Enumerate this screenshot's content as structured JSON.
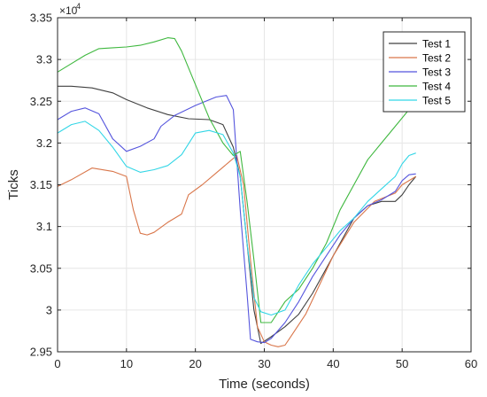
{
  "chart_data": {
    "type": "line",
    "title": "",
    "xlabel": "Time (seconds)",
    "ylabel": "Ticks",
    "y_scale_exponent_label": "×10",
    "y_scale_exponent_power": "4",
    "xlim": [
      0,
      60
    ],
    "ylim": [
      29500,
      33500
    ],
    "x_ticks": [
      0,
      10,
      20,
      30,
      40,
      50,
      60
    ],
    "x_tick_labels": [
      "0",
      "10",
      "20",
      "30",
      "40",
      "50",
      "60"
    ],
    "y_ticks": [
      29500,
      30000,
      30500,
      31000,
      31500,
      32000,
      32500,
      33000,
      33500
    ],
    "y_tick_labels": [
      "2.95",
      "3",
      "3.05",
      "3.1",
      "3.15",
      "3.2",
      "3.25",
      "3.3",
      "3.35"
    ],
    "grid": true,
    "legend_position": "top-right",
    "series": [
      {
        "name": "Test 1",
        "color": "#404040",
        "x": [
          0,
          2,
          5,
          8,
          10,
          13,
          16,
          19,
          22,
          24,
          25.5,
          26.5,
          27.5,
          28.5,
          29.5,
          31,
          33,
          35,
          37,
          39,
          41,
          43,
          45,
          47,
          49,
          50,
          51,
          52
        ],
        "y": [
          32680,
          32680,
          32660,
          32600,
          32520,
          32420,
          32340,
          32290,
          32280,
          32220,
          31950,
          31600,
          30800,
          30000,
          29600,
          29680,
          29800,
          29950,
          30200,
          30500,
          30800,
          31100,
          31250,
          31300,
          31300,
          31380,
          31500,
          31600
        ]
      },
      {
        "name": "Test 2",
        "color": "#d9764a",
        "x": [
          0,
          2,
          5,
          8,
          10,
          11,
          12,
          13,
          14,
          16,
          18,
          19,
          21,
          23,
          25,
          26,
          27,
          28,
          29,
          30,
          31,
          32,
          33,
          34,
          36,
          38,
          40,
          43,
          46,
          49,
          50,
          52
        ],
        "y": [
          31480,
          31560,
          31700,
          31660,
          31600,
          31200,
          30920,
          30900,
          30930,
          31050,
          31150,
          31380,
          31500,
          31640,
          31780,
          31850,
          31500,
          30600,
          29800,
          29620,
          29580,
          29560,
          29580,
          29700,
          29950,
          30300,
          30650,
          31050,
          31300,
          31400,
          31500,
          31600
        ]
      },
      {
        "name": "Test 3",
        "color": "#5555dd",
        "x": [
          0,
          2,
          4,
          6,
          8,
          10,
          12,
          14,
          15,
          17,
          20,
          23,
          24.5,
          25.5,
          26.5,
          27.5,
          28,
          29,
          30,
          31,
          33,
          35,
          37,
          39,
          41,
          43,
          45,
          47,
          49,
          50,
          51,
          52
        ],
        "y": [
          32280,
          32380,
          32420,
          32350,
          32050,
          31900,
          31960,
          32050,
          32200,
          32330,
          32450,
          32550,
          32570,
          32400,
          31200,
          30200,
          29650,
          29620,
          29610,
          29660,
          29850,
          30100,
          30400,
          30650,
          30900,
          31100,
          31250,
          31320,
          31420,
          31550,
          31620,
          31630
        ]
      },
      {
        "name": "Test 4",
        "color": "#3fb83f",
        "x": [
          0,
          2,
          4,
          6,
          8,
          10,
          12,
          14,
          16,
          17,
          18,
          19,
          20,
          22,
          24,
          25.5,
          26.5,
          27.5,
          28.5,
          29.5,
          31,
          33,
          35,
          37,
          39,
          41,
          43,
          45,
          47,
          49,
          51,
          52
        ],
        "y": [
          32850,
          32950,
          33050,
          33130,
          33140,
          33150,
          33170,
          33210,
          33260,
          33250,
          33100,
          32900,
          32700,
          32300,
          32000,
          31850,
          31900,
          31300,
          30600,
          29850,
          29850,
          30100,
          30250,
          30500,
          30800,
          31200,
          31500,
          31800,
          32000,
          32200,
          32400,
          32550
        ]
      },
      {
        "name": "Test 5",
        "color": "#33d6e6",
        "x": [
          0,
          2,
          4,
          6,
          8,
          10,
          12,
          14,
          16,
          18,
          20,
          22,
          24,
          25.5,
          26.5,
          27.5,
          28.5,
          29.5,
          31,
          33,
          35,
          37,
          39,
          41,
          43,
          45,
          47,
          49,
          50,
          51,
          52
        ],
        "y": [
          32120,
          32220,
          32260,
          32150,
          31950,
          31720,
          31650,
          31680,
          31730,
          31860,
          32120,
          32150,
          32100,
          31880,
          31600,
          30800,
          30150,
          29980,
          29940,
          30000,
          30300,
          30550,
          30750,
          30950,
          31100,
          31300,
          31450,
          31600,
          31750,
          31850,
          31880
        ]
      }
    ]
  }
}
